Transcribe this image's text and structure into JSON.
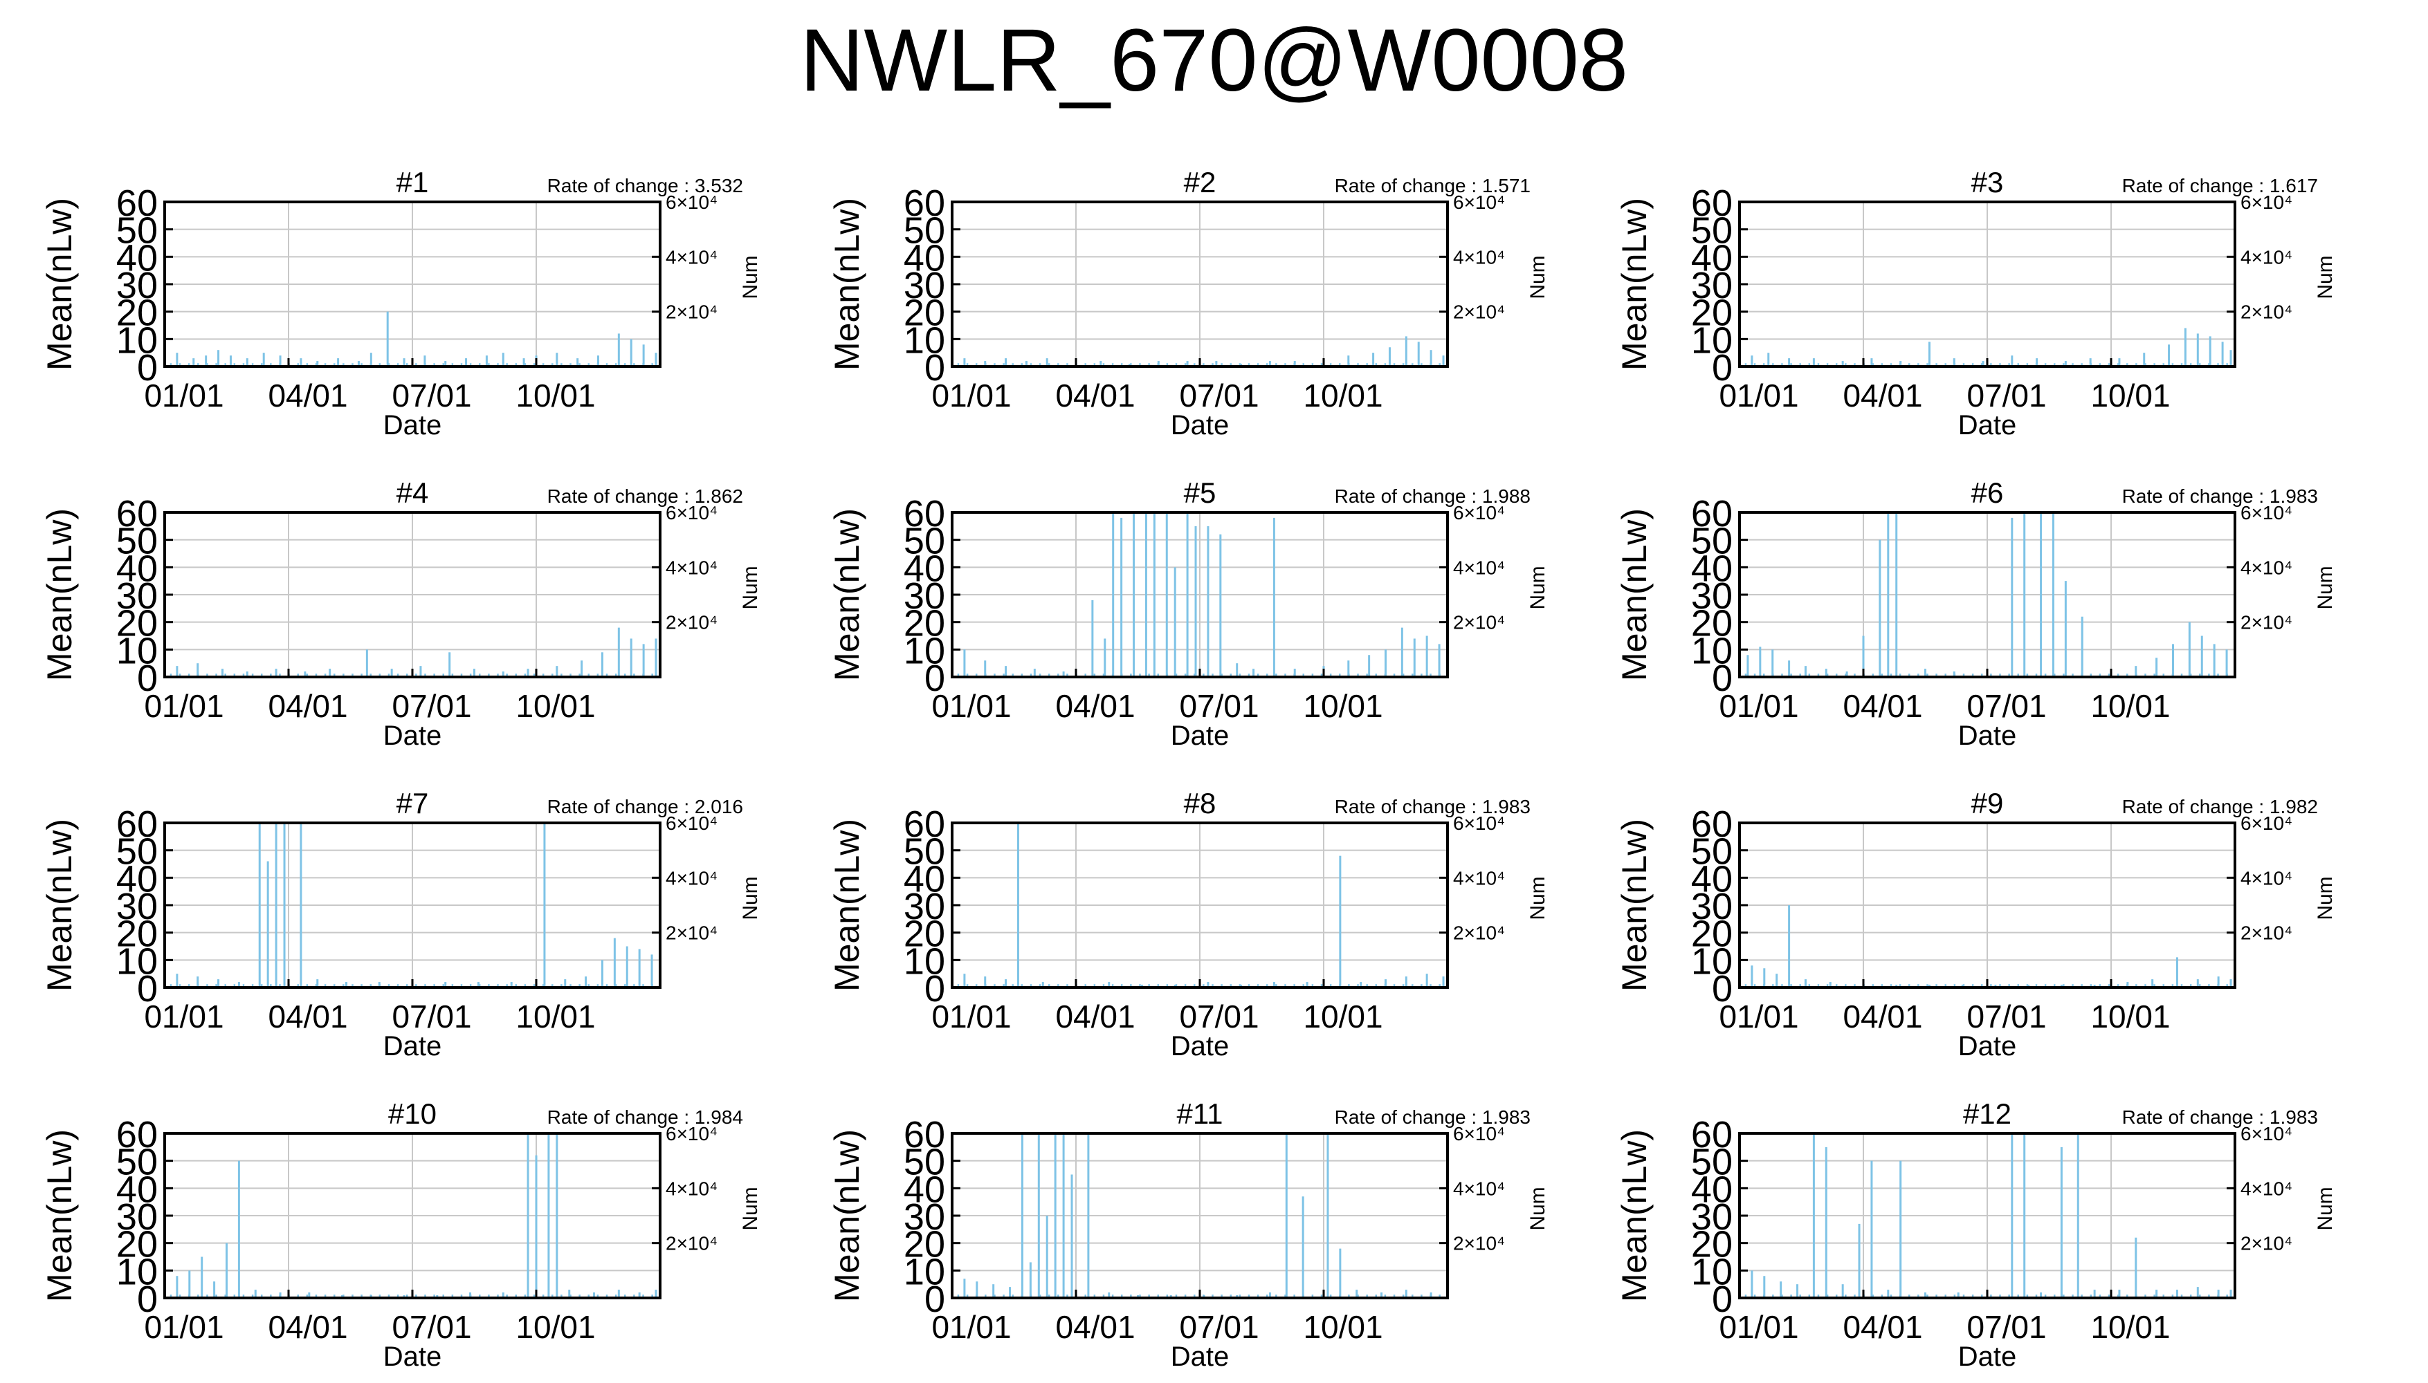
{
  "title": "NWLR_670@W0008",
  "axes": {
    "ylabel": "Mean(nLw)",
    "y2label": "Num",
    "xlabel": "Date",
    "yticks": [
      "0",
      "10",
      "20",
      "30",
      "40",
      "50",
      "60"
    ],
    "y2ticks": [
      "2×10⁴",
      "4×10⁴",
      "6×10⁴"
    ],
    "xticks": [
      "01/01",
      "04/01",
      "07/01",
      "10/01"
    ]
  },
  "colors": {
    "bars": "#7ec3e6",
    "grid": "#c8c8c8",
    "frame": "#000000"
  },
  "chart_data": [
    {
      "type": "bar",
      "title": "#1",
      "rate_label": "Rate of change : 3.532",
      "ylim": [
        0,
        60
      ],
      "y2lim": [
        0,
        60000
      ],
      "x_months": [
        0,
        12
      ],
      "spikes": [
        [
          0.3,
          5
        ],
        [
          0.7,
          3
        ],
        [
          1.0,
          4
        ],
        [
          1.3,
          6
        ],
        [
          1.6,
          4
        ],
        [
          2.0,
          3
        ],
        [
          2.4,
          5
        ],
        [
          2.8,
          4
        ],
        [
          3.3,
          3
        ],
        [
          3.7,
          2
        ],
        [
          4.2,
          3
        ],
        [
          4.7,
          2
        ],
        [
          5.0,
          5
        ],
        [
          5.4,
          20
        ],
        [
          5.8,
          3
        ],
        [
          6.3,
          4
        ],
        [
          6.8,
          2
        ],
        [
          7.3,
          3
        ],
        [
          7.8,
          4
        ],
        [
          8.2,
          5
        ],
        [
          8.7,
          3
        ],
        [
          9.0,
          4
        ],
        [
          9.5,
          5
        ],
        [
          10.0,
          3
        ],
        [
          10.5,
          4
        ],
        [
          11.0,
          12
        ],
        [
          11.3,
          10
        ],
        [
          11.6,
          8
        ],
        [
          11.9,
          5
        ]
      ]
    },
    {
      "type": "bar",
      "title": "#2",
      "rate_label": "Rate of change : 1.571",
      "ylim": [
        0,
        60
      ],
      "y2lim": [
        0,
        60000
      ],
      "x_months": [
        0,
        12
      ],
      "spikes": [
        [
          0.3,
          3
        ],
        [
          0.8,
          2
        ],
        [
          1.3,
          3
        ],
        [
          1.8,
          2
        ],
        [
          2.3,
          3
        ],
        [
          3.0,
          2
        ],
        [
          3.6,
          2
        ],
        [
          4.3,
          1
        ],
        [
          5.0,
          2
        ],
        [
          5.7,
          2
        ],
        [
          6.4,
          2
        ],
        [
          7.0,
          1
        ],
        [
          7.7,
          2
        ],
        [
          8.3,
          2
        ],
        [
          9.0,
          3
        ],
        [
          9.6,
          4
        ],
        [
          10.2,
          5
        ],
        [
          10.6,
          7
        ],
        [
          11.0,
          11
        ],
        [
          11.3,
          9
        ],
        [
          11.6,
          6
        ],
        [
          11.9,
          4
        ]
      ]
    },
    {
      "type": "bar",
      "title": "#3",
      "rate_label": "Rate of change : 1.617",
      "ylim": [
        0,
        60
      ],
      "y2lim": [
        0,
        60000
      ],
      "x_months": [
        0,
        12
      ],
      "spikes": [
        [
          0.3,
          4
        ],
        [
          0.7,
          5
        ],
        [
          1.2,
          3
        ],
        [
          1.8,
          3
        ],
        [
          2.5,
          2
        ],
        [
          3.2,
          3
        ],
        [
          3.9,
          2
        ],
        [
          4.6,
          9
        ],
        [
          5.2,
          3
        ],
        [
          5.9,
          2
        ],
        [
          6.6,
          4
        ],
        [
          7.2,
          3
        ],
        [
          7.9,
          2
        ],
        [
          8.5,
          3
        ],
        [
          9.2,
          3
        ],
        [
          9.8,
          5
        ],
        [
          10.4,
          8
        ],
        [
          10.8,
          14
        ],
        [
          11.1,
          12
        ],
        [
          11.4,
          11
        ],
        [
          11.7,
          9
        ],
        [
          11.9,
          6
        ]
      ]
    },
    {
      "type": "bar",
      "title": "#4",
      "rate_label": "Rate of change : 1.862",
      "ylim": [
        0,
        60
      ],
      "y2lim": [
        0,
        60000
      ],
      "x_months": [
        0,
        12
      ],
      "spikes": [
        [
          0.3,
          4
        ],
        [
          0.8,
          5
        ],
        [
          1.4,
          3
        ],
        [
          2.0,
          2
        ],
        [
          2.7,
          3
        ],
        [
          3.4,
          2
        ],
        [
          4.0,
          3
        ],
        [
          4.9,
          10
        ],
        [
          5.5,
          3
        ],
        [
          6.2,
          4
        ],
        [
          6.9,
          9
        ],
        [
          7.5,
          3
        ],
        [
          8.2,
          2
        ],
        [
          8.8,
          3
        ],
        [
          9.5,
          4
        ],
        [
          10.1,
          6
        ],
        [
          10.6,
          9
        ],
        [
          11.0,
          18
        ],
        [
          11.3,
          14
        ],
        [
          11.6,
          12
        ],
        [
          11.9,
          14
        ]
      ]
    },
    {
      "type": "bar",
      "title": "#5",
      "rate_label": "Rate of change : 1.988",
      "ylim": [
        0,
        60
      ],
      "y2lim": [
        0,
        60000
      ],
      "x_months": [
        0,
        12
      ],
      "spikes": [
        [
          0.3,
          10
        ],
        [
          0.8,
          6
        ],
        [
          1.3,
          4
        ],
        [
          2.0,
          3
        ],
        [
          2.7,
          2
        ],
        [
          3.4,
          28
        ],
        [
          3.7,
          14
        ],
        [
          3.9,
          60
        ],
        [
          4.1,
          58
        ],
        [
          4.4,
          60
        ],
        [
          4.7,
          60
        ],
        [
          4.9,
          60
        ],
        [
          5.2,
          60
        ],
        [
          5.4,
          40
        ],
        [
          5.7,
          60
        ],
        [
          5.9,
          55
        ],
        [
          6.2,
          55
        ],
        [
          6.5,
          52
        ],
        [
          6.9,
          5
        ],
        [
          7.3,
          3
        ],
        [
          7.8,
          58
        ],
        [
          8.3,
          3
        ],
        [
          9.0,
          4
        ],
        [
          9.6,
          6
        ],
        [
          10.1,
          8
        ],
        [
          10.5,
          10
        ],
        [
          10.9,
          18
        ],
        [
          11.2,
          14
        ],
        [
          11.5,
          15
        ],
        [
          11.8,
          12
        ]
      ]
    },
    {
      "type": "bar",
      "title": "#6",
      "rate_label": "Rate of change : 1.983",
      "ylim": [
        0,
        60
      ],
      "y2lim": [
        0,
        60000
      ],
      "x_months": [
        0,
        12
      ],
      "spikes": [
        [
          0.2,
          8
        ],
        [
          0.5,
          11
        ],
        [
          0.8,
          10
        ],
        [
          1.2,
          6
        ],
        [
          1.6,
          4
        ],
        [
          2.1,
          3
        ],
        [
          2.6,
          2
        ],
        [
          3.0,
          15
        ],
        [
          3.4,
          50
        ],
        [
          3.6,
          60
        ],
        [
          3.8,
          60
        ],
        [
          4.5,
          3
        ],
        [
          5.2,
          2
        ],
        [
          6.0,
          3
        ],
        [
          6.6,
          58
        ],
        [
          6.9,
          60
        ],
        [
          7.3,
          60
        ],
        [
          7.6,
          60
        ],
        [
          7.9,
          35
        ],
        [
          8.3,
          22
        ],
        [
          9.0,
          3
        ],
        [
          9.6,
          4
        ],
        [
          10.1,
          7
        ],
        [
          10.5,
          12
        ],
        [
          10.9,
          20
        ],
        [
          11.2,
          15
        ],
        [
          11.5,
          12
        ],
        [
          11.8,
          10
        ]
      ]
    },
    {
      "type": "bar",
      "title": "#7",
      "rate_label": "Rate of change : 2.016",
      "ylim": [
        0,
        60
      ],
      "y2lim": [
        0,
        60000
      ],
      "x_months": [
        0,
        12
      ],
      "spikes": [
        [
          0.3,
          5
        ],
        [
          0.8,
          4
        ],
        [
          1.3,
          3
        ],
        [
          1.8,
          2
        ],
        [
          2.3,
          60
        ],
        [
          2.5,
          46
        ],
        [
          2.7,
          60
        ],
        [
          2.9,
          60
        ],
        [
          3.3,
          60
        ],
        [
          3.7,
          3
        ],
        [
          4.4,
          2
        ],
        [
          5.2,
          2
        ],
        [
          6.0,
          2
        ],
        [
          6.8,
          2
        ],
        [
          7.6,
          2
        ],
        [
          8.4,
          2
        ],
        [
          9.2,
          60
        ],
        [
          9.7,
          3
        ],
        [
          10.2,
          4
        ],
        [
          10.6,
          10
        ],
        [
          10.9,
          18
        ],
        [
          11.2,
          15
        ],
        [
          11.5,
          14
        ],
        [
          11.8,
          12
        ]
      ]
    },
    {
      "type": "bar",
      "title": "#8",
      "rate_label": "Rate of change : 1.983",
      "ylim": [
        0,
        60
      ],
      "y2lim": [
        0,
        60000
      ],
      "x_months": [
        0,
        12
      ],
      "spikes": [
        [
          0.3,
          5
        ],
        [
          0.8,
          4
        ],
        [
          1.3,
          3
        ],
        [
          1.6,
          60
        ],
        [
          2.2,
          2
        ],
        [
          3.0,
          2
        ],
        [
          3.8,
          2
        ],
        [
          4.6,
          1
        ],
        [
          5.4,
          1
        ],
        [
          6.2,
          2
        ],
        [
          7.0,
          1
        ],
        [
          7.8,
          2
        ],
        [
          8.6,
          2
        ],
        [
          9.4,
          48
        ],
        [
          9.9,
          2
        ],
        [
          10.5,
          3
        ],
        [
          11.0,
          4
        ],
        [
          11.5,
          5
        ],
        [
          11.9,
          4
        ]
      ]
    },
    {
      "type": "bar",
      "title": "#9",
      "rate_label": "Rate of change : 1.982",
      "ylim": [
        0,
        60
      ],
      "y2lim": [
        0,
        60000
      ],
      "x_months": [
        0,
        12
      ],
      "spikes": [
        [
          0.3,
          8
        ],
        [
          0.6,
          7
        ],
        [
          0.9,
          5
        ],
        [
          1.2,
          30
        ],
        [
          1.6,
          3
        ],
        [
          2.2,
          2
        ],
        [
          3.0,
          1
        ],
        [
          3.8,
          1
        ],
        [
          4.6,
          1
        ],
        [
          5.4,
          1
        ],
        [
          6.2,
          1
        ],
        [
          7.0,
          1
        ],
        [
          7.8,
          1
        ],
        [
          8.6,
          1
        ],
        [
          9.4,
          2
        ],
        [
          10.0,
          3
        ],
        [
          10.6,
          11
        ],
        [
          11.1,
          3
        ],
        [
          11.6,
          4
        ],
        [
          11.9,
          3
        ]
      ]
    },
    {
      "type": "bar",
      "title": "#10",
      "rate_label": "Rate of change : 1.984",
      "ylim": [
        0,
        60
      ],
      "y2lim": [
        0,
        60000
      ],
      "x_months": [
        0,
        12
      ],
      "spikes": [
        [
          0.3,
          8
        ],
        [
          0.6,
          10
        ],
        [
          0.9,
          15
        ],
        [
          1.2,
          6
        ],
        [
          1.5,
          20
        ],
        [
          1.8,
          50
        ],
        [
          2.2,
          3
        ],
        [
          2.8,
          2
        ],
        [
          3.5,
          2
        ],
        [
          4.3,
          1
        ],
        [
          5.0,
          1
        ],
        [
          5.8,
          1
        ],
        [
          6.6,
          1
        ],
        [
          7.4,
          2
        ],
        [
          8.2,
          2
        ],
        [
          8.8,
          60
        ],
        [
          9.0,
          52
        ],
        [
          9.3,
          60
        ],
        [
          9.5,
          60
        ],
        [
          9.8,
          3
        ],
        [
          10.4,
          2
        ],
        [
          11.0,
          3
        ],
        [
          11.5,
          2
        ],
        [
          11.9,
          3
        ]
      ]
    },
    {
      "type": "bar",
      "title": "#11",
      "rate_label": "Rate of change : 1.983",
      "ylim": [
        0,
        60
      ],
      "y2lim": [
        0,
        60000
      ],
      "x_months": [
        0,
        12
      ],
      "spikes": [
        [
          0.3,
          7
        ],
        [
          0.6,
          6
        ],
        [
          1.0,
          5
        ],
        [
          1.4,
          4
        ],
        [
          1.7,
          60
        ],
        [
          1.9,
          13
        ],
        [
          2.1,
          60
        ],
        [
          2.3,
          30
        ],
        [
          2.5,
          60
        ],
        [
          2.7,
          60
        ],
        [
          2.9,
          45
        ],
        [
          3.3,
          60
        ],
        [
          3.8,
          2
        ],
        [
          4.5,
          1
        ],
        [
          5.3,
          1
        ],
        [
          6.1,
          1
        ],
        [
          6.9,
          1
        ],
        [
          7.7,
          2
        ],
        [
          8.1,
          60
        ],
        [
          8.5,
          37
        ],
        [
          9.1,
          60
        ],
        [
          9.4,
          18
        ],
        [
          9.8,
          3
        ],
        [
          10.4,
          2
        ],
        [
          11.0,
          3
        ],
        [
          11.6,
          2
        ]
      ]
    },
    {
      "type": "bar",
      "title": "#12",
      "rate_label": "Rate of change : 1.983",
      "ylim": [
        0,
        60
      ],
      "y2lim": [
        0,
        60000
      ],
      "x_months": [
        0,
        12
      ],
      "spikes": [
        [
          0.3,
          10
        ],
        [
          0.6,
          8
        ],
        [
          1.0,
          6
        ],
        [
          1.4,
          5
        ],
        [
          1.8,
          60
        ],
        [
          2.1,
          55
        ],
        [
          2.5,
          5
        ],
        [
          2.9,
          27
        ],
        [
          3.2,
          50
        ],
        [
          3.6,
          3
        ],
        [
          3.9,
          50
        ],
        [
          4.5,
          2
        ],
        [
          5.3,
          2
        ],
        [
          6.0,
          2
        ],
        [
          6.6,
          60
        ],
        [
          6.9,
          60
        ],
        [
          7.3,
          2
        ],
        [
          7.8,
          55
        ],
        [
          8.2,
          60
        ],
        [
          8.6,
          3
        ],
        [
          9.2,
          3
        ],
        [
          9.6,
          22
        ],
        [
          10.1,
          3
        ],
        [
          10.6,
          3
        ],
        [
          11.1,
          4
        ],
        [
          11.6,
          3
        ],
        [
          11.9,
          3
        ]
      ]
    }
  ]
}
